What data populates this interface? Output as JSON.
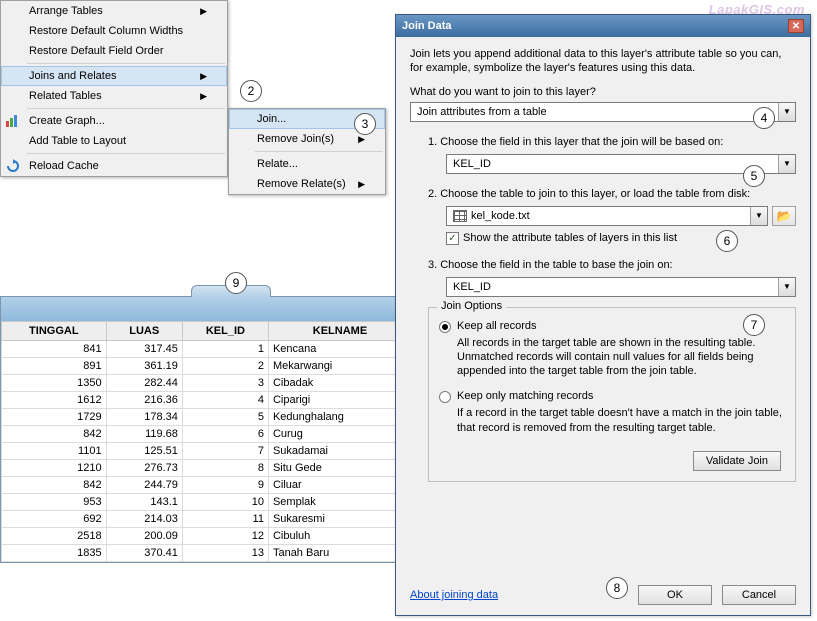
{
  "watermark": "LapakGIS.com",
  "context_menu_1": {
    "items": [
      {
        "label": "Arrange Tables",
        "arrow": true
      },
      {
        "label": "Restore Default Column Widths"
      },
      {
        "label": "Restore Default Field Order"
      },
      {
        "label": "Joins and Relates",
        "arrow": true,
        "highlight": true
      },
      {
        "label": "Related Tables",
        "arrow": true
      },
      {
        "label": "Create Graph...",
        "icon": "chart"
      },
      {
        "label": "Add Table to Layout"
      },
      {
        "label": "Reload Cache",
        "icon": "reload"
      }
    ]
  },
  "context_menu_2": {
    "items": [
      {
        "label": "Join...",
        "highlight": true
      },
      {
        "label": "Remove Join(s)",
        "arrow": true
      },
      {
        "label": "Relate..."
      },
      {
        "label": "Remove Relate(s)",
        "arrow": true
      }
    ]
  },
  "callouts": {
    "c2": "2",
    "c3": "3",
    "c4": "4",
    "c5": "5",
    "c6": "6",
    "c7": "7",
    "c8": "8",
    "c9": "9"
  },
  "table": {
    "columns": [
      "TINGGAL",
      "LUAS",
      "KEL_ID",
      "KELNAME"
    ],
    "rows": [
      [
        "841",
        "317.45",
        "1",
        "Kencana"
      ],
      [
        "891",
        "361.19",
        "2",
        "Mekarwangi"
      ],
      [
        "1350",
        "282.44",
        "3",
        "Cibadak"
      ],
      [
        "1612",
        "216.36",
        "4",
        "Ciparigi"
      ],
      [
        "1729",
        "178.34",
        "5",
        "Kedunghalang"
      ],
      [
        "842",
        "119.68",
        "6",
        "Curug"
      ],
      [
        "1101",
        "125.51",
        "7",
        "Sukadamai"
      ],
      [
        "1210",
        "276.73",
        "8",
        "Situ Gede"
      ],
      [
        "842",
        "244.79",
        "9",
        "Ciluar"
      ],
      [
        "953",
        "143.1",
        "10",
        "Semplak"
      ],
      [
        "692",
        "214.03",
        "11",
        "Sukaresmi"
      ],
      [
        "2518",
        "200.09",
        "12",
        "Cibuluh"
      ],
      [
        "1835",
        "370.41",
        "13",
        "Tanah Baru"
      ]
    ]
  },
  "dialog": {
    "title": "Join Data",
    "intro": "Join lets you append additional data to this layer's attribute table so you can, for example, symbolize the layer's features using this data.",
    "question": "What do you want to join to this layer?",
    "join_type": "Join attributes from a table",
    "step1": "1.  Choose the field in this layer that the join will be based on:",
    "field1": "KEL_ID",
    "step2": "2.  Choose the table to join to this layer, or load the table from disk:",
    "file": "kel_kode.txt",
    "show_attr_label": "Show the attribute tables of layers in this list",
    "step3": "3.  Choose the field in the table to base the join on:",
    "field3": "KEL_ID",
    "join_options_title": "Join Options",
    "keep_all_label": "Keep all records",
    "keep_all_desc": "All records in the target table are shown in the resulting table. Unmatched records will contain null values for all fields being appended into the target table from the join table.",
    "keep_match_label": "Keep only matching records",
    "keep_match_desc": "If a record in the target table doesn't have a match in the join table, that record is removed from the resulting target table.",
    "validate_btn": "Validate Join",
    "about_link": "About joining data",
    "ok_btn": "OK",
    "cancel_btn": "Cancel"
  },
  "colors": {
    "dialog_titlebar_start": "#6a96c4",
    "dialog_titlebar_end": "#3b6da0",
    "highlight_bg": "#d6e5f3",
    "highlight_border": "#a4c5e6"
  }
}
